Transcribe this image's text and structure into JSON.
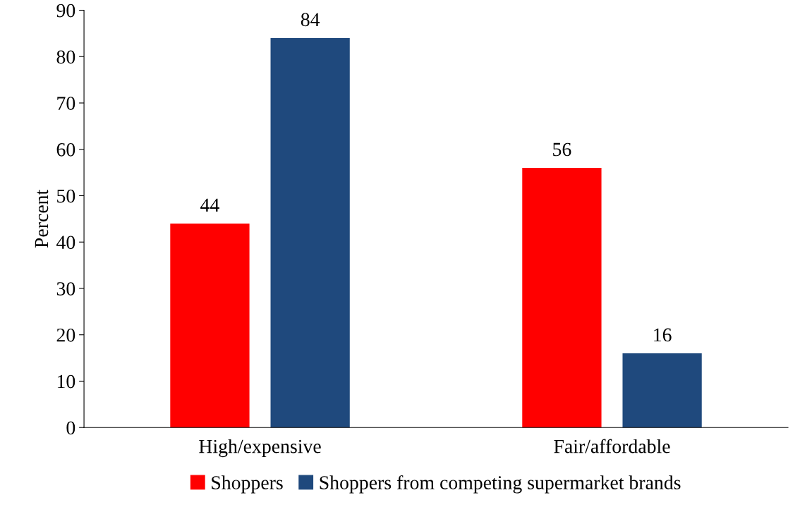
{
  "chart_data": {
    "type": "bar",
    "ylabel": "Percent",
    "categories": [
      "High/expensive",
      "Fair/affordable"
    ],
    "series": [
      {
        "name": "Shoppers",
        "color": "#ff0000",
        "values": [
          44,
          56
        ]
      },
      {
        "name": "Shoppers from competing supermarket brands",
        "color": "#1f497d",
        "values": [
          84,
          16
        ]
      }
    ],
    "ylim": [
      0,
      90
    ],
    "yticks": [
      0,
      10,
      20,
      30,
      40,
      50,
      60,
      70,
      80,
      90
    ],
    "grid": false,
    "legend": "bottom",
    "data_labels": true
  }
}
